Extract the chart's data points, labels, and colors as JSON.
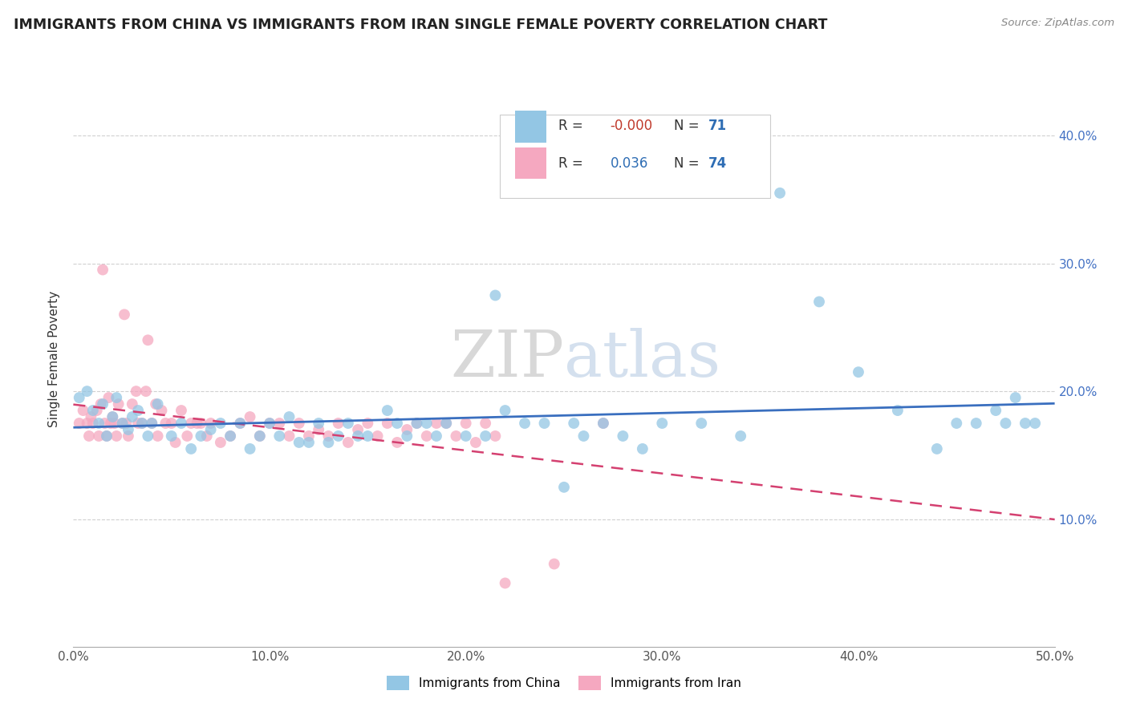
{
  "title": "IMMIGRANTS FROM CHINA VS IMMIGRANTS FROM IRAN SINGLE FEMALE POVERTY CORRELATION CHART",
  "source": "Source: ZipAtlas.com",
  "ylabel": "Single Female Poverty",
  "xlim": [
    0.0,
    0.5
  ],
  "ylim": [
    0.0,
    0.45
  ],
  "xtick_labels": [
    "0.0%",
    "10.0%",
    "20.0%",
    "30.0%",
    "40.0%",
    "50.0%"
  ],
  "ytick_labels": [
    "10.0%",
    "20.0%",
    "30.0%",
    "40.0%"
  ],
  "yticks": [
    0.1,
    0.2,
    0.3,
    0.4
  ],
  "xticks": [
    0.0,
    0.1,
    0.2,
    0.3,
    0.4,
    0.5
  ],
  "r_china": -0.0,
  "n_china": 71,
  "r_iran": 0.036,
  "n_iran": 74,
  "color_china": "#93c6e4",
  "color_iran": "#f5a8c0",
  "line_color_china": "#3a6fbf",
  "line_color_iran": "#d44070",
  "legend_labels": [
    "Immigrants from China",
    "Immigrants from Iran"
  ],
  "china_x": [
    0.003,
    0.007,
    0.01,
    0.013,
    0.015,
    0.017,
    0.02,
    0.022,
    0.025,
    0.028,
    0.03,
    0.033,
    0.035,
    0.038,
    0.04,
    0.043,
    0.05,
    0.055,
    0.06,
    0.065,
    0.07,
    0.075,
    0.08,
    0.085,
    0.09,
    0.095,
    0.1,
    0.105,
    0.11,
    0.115,
    0.12,
    0.125,
    0.13,
    0.135,
    0.14,
    0.145,
    0.15,
    0.16,
    0.165,
    0.17,
    0.175,
    0.18,
    0.185,
    0.19,
    0.2,
    0.21,
    0.215,
    0.22,
    0.23,
    0.24,
    0.25,
    0.255,
    0.26,
    0.27,
    0.28,
    0.29,
    0.3,
    0.32,
    0.34,
    0.36,
    0.38,
    0.4,
    0.42,
    0.44,
    0.45,
    0.46,
    0.47,
    0.475,
    0.48,
    0.485,
    0.49
  ],
  "china_y": [
    0.195,
    0.2,
    0.185,
    0.175,
    0.19,
    0.165,
    0.18,
    0.195,
    0.175,
    0.17,
    0.18,
    0.185,
    0.175,
    0.165,
    0.175,
    0.19,
    0.165,
    0.175,
    0.155,
    0.165,
    0.17,
    0.175,
    0.165,
    0.175,
    0.155,
    0.165,
    0.175,
    0.165,
    0.18,
    0.16,
    0.16,
    0.175,
    0.16,
    0.165,
    0.175,
    0.165,
    0.165,
    0.185,
    0.175,
    0.165,
    0.175,
    0.175,
    0.165,
    0.175,
    0.165,
    0.165,
    0.275,
    0.185,
    0.175,
    0.175,
    0.125,
    0.175,
    0.165,
    0.175,
    0.165,
    0.155,
    0.175,
    0.175,
    0.165,
    0.355,
    0.27,
    0.215,
    0.185,
    0.155,
    0.175,
    0.175,
    0.185,
    0.175,
    0.195,
    0.175,
    0.175
  ],
  "iran_x": [
    0.003,
    0.005,
    0.007,
    0.008,
    0.009,
    0.01,
    0.012,
    0.013,
    0.014,
    0.015,
    0.016,
    0.017,
    0.018,
    0.019,
    0.02,
    0.021,
    0.022,
    0.023,
    0.025,
    0.026,
    0.027,
    0.028,
    0.03,
    0.032,
    0.033,
    0.035,
    0.037,
    0.038,
    0.04,
    0.042,
    0.043,
    0.045,
    0.047,
    0.05,
    0.052,
    0.055,
    0.058,
    0.06,
    0.063,
    0.065,
    0.068,
    0.07,
    0.075,
    0.08,
    0.085,
    0.09,
    0.095,
    0.1,
    0.105,
    0.11,
    0.115,
    0.12,
    0.125,
    0.13,
    0.135,
    0.14,
    0.145,
    0.15,
    0.155,
    0.16,
    0.165,
    0.17,
    0.175,
    0.18,
    0.185,
    0.19,
    0.195,
    0.2,
    0.205,
    0.21,
    0.215,
    0.22,
    0.245,
    0.27
  ],
  "iran_y": [
    0.175,
    0.185,
    0.175,
    0.165,
    0.18,
    0.175,
    0.185,
    0.165,
    0.19,
    0.295,
    0.175,
    0.165,
    0.195,
    0.175,
    0.18,
    0.175,
    0.165,
    0.19,
    0.175,
    0.26,
    0.175,
    0.165,
    0.19,
    0.2,
    0.175,
    0.175,
    0.2,
    0.24,
    0.175,
    0.19,
    0.165,
    0.185,
    0.175,
    0.175,
    0.16,
    0.185,
    0.165,
    0.175,
    0.175,
    0.175,
    0.165,
    0.175,
    0.16,
    0.165,
    0.175,
    0.18,
    0.165,
    0.175,
    0.175,
    0.165,
    0.175,
    0.165,
    0.17,
    0.165,
    0.175,
    0.16,
    0.17,
    0.175,
    0.165,
    0.175,
    0.16,
    0.17,
    0.175,
    0.165,
    0.175,
    0.175,
    0.165,
    0.175,
    0.16,
    0.175,
    0.165,
    0.05,
    0.065,
    0.175
  ]
}
